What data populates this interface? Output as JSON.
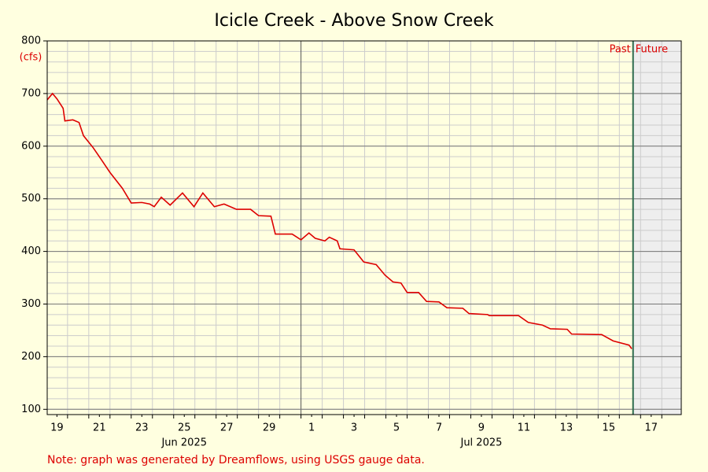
{
  "chart_data": {
    "type": "line",
    "title": "Icicle Creek - Above Snow Creek",
    "y_unit": "(cfs)",
    "note": "Note: graph was generated by Dreamflows, using USGS gauge data.",
    "now": "2025-07-16T15:30",
    "past_label": "Past",
    "future_label": "Future",
    "x": [
      "2025-06-19T01:00",
      "2025-06-19T07:00",
      "2025-06-19T12:00",
      "2025-06-19T19:00",
      "2025-06-19T21:00",
      "2025-06-20T06:00",
      "2025-06-20T13:00",
      "2025-06-20T18:00",
      "2025-06-21T05:00",
      "2025-06-21T14:00",
      "2025-06-22T00:00",
      "2025-06-22T14:00",
      "2025-06-23T00:00",
      "2025-06-23T12:00",
      "2025-06-23T21:00",
      "2025-06-24T02:00",
      "2025-06-24T10:00",
      "2025-06-24T20:00",
      "2025-06-25T10:00",
      "2025-06-25T23:00",
      "2025-06-26T09:00",
      "2025-06-26T22:00",
      "2025-06-27T09:00",
      "2025-06-27T23:00",
      "2025-06-28T15:00",
      "2025-06-29T00:00",
      "2025-06-29T14:00",
      "2025-06-29T19:00",
      "2025-06-30T14:00",
      "2025-07-01T00:00",
      "2025-07-01T09:00",
      "2025-07-01T16:00",
      "2025-07-02T03:00",
      "2025-07-02T08:00",
      "2025-07-02T17:00",
      "2025-07-02T20:00",
      "2025-07-03T12:00",
      "2025-07-03T23:00",
      "2025-07-04T13:00",
      "2025-07-04T23:00",
      "2025-07-05T08:00",
      "2025-07-05T17:00",
      "2025-07-06T00:00",
      "2025-07-06T13:00",
      "2025-07-06T22:00",
      "2025-07-07T12:00",
      "2025-07-07T21:00",
      "2025-07-08T15:00",
      "2025-07-08T22:00",
      "2025-07-09T19:00",
      "2025-07-09T21:00",
      "2025-07-11T06:00",
      "2025-07-11T17:00",
      "2025-07-12T09:00",
      "2025-07-12T18:00",
      "2025-07-13T13:00",
      "2025-07-13T18:00",
      "2025-07-15T04:00",
      "2025-07-15T17:00",
      "2025-07-16T11:00",
      "2025-07-16T14:00"
    ],
    "series": [
      {
        "color": "#dd0000",
        "values": [
          688,
          700,
          690,
          672,
          648,
          650,
          645,
          620,
          597,
          575,
          550,
          520,
          492,
          493,
          490,
          485,
          503,
          488,
          511,
          485,
          511,
          485,
          490,
          480,
          480,
          468,
          467,
          433,
          433,
          422,
          435,
          425,
          420,
          427,
          420,
          405,
          403,
          380,
          375,
          355,
          342,
          340,
          322,
          322,
          305,
          304,
          293,
          292,
          282,
          280,
          278,
          278,
          265,
          260,
          253,
          252,
          243,
          242,
          230,
          222,
          215
        ]
      }
    ],
    "xlim": [
      "2025-06-19T01:00",
      "2025-07-18T22:00"
    ],
    "ylim": [
      90,
      800
    ],
    "yticks": [
      100,
      200,
      300,
      400,
      500,
      600,
      700,
      800
    ],
    "xticks": [
      {
        "value": "2025-06-19T12:00",
        "label": "19"
      },
      {
        "value": "2025-06-21T12:00",
        "label": "21"
      },
      {
        "value": "2025-06-23T12:00",
        "label": "23"
      },
      {
        "value": "2025-06-25T12:00",
        "label": "25"
      },
      {
        "value": "2025-06-27T12:00",
        "label": "27"
      },
      {
        "value": "2025-06-29T12:00",
        "label": "29"
      },
      {
        "value": "2025-07-01T12:00",
        "label": "1"
      },
      {
        "value": "2025-07-03T12:00",
        "label": "3"
      },
      {
        "value": "2025-07-05T12:00",
        "label": "5"
      },
      {
        "value": "2025-07-07T12:00",
        "label": "7"
      },
      {
        "value": "2025-07-09T12:00",
        "label": "9"
      },
      {
        "value": "2025-07-11T12:00",
        "label": "11"
      },
      {
        "value": "2025-07-13T12:00",
        "label": "13"
      },
      {
        "value": "2025-07-15T12:00",
        "label": "15"
      },
      {
        "value": "2025-07-17T12:00",
        "label": "17"
      }
    ],
    "month_ticks": [
      {
        "value": "2025-06-25T12:00",
        "label": "Jun 2025"
      },
      {
        "value": "2025-07-09T12:00",
        "label": "Jul 2025"
      }
    ],
    "grid": true
  }
}
